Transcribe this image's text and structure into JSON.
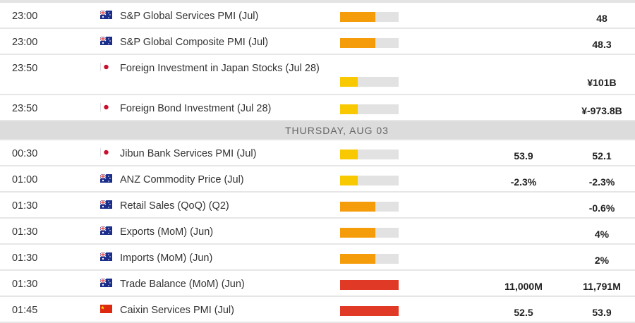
{
  "colors": {
    "high": "#e03a26",
    "medium": "#f59c0a",
    "low": "#f8c800",
    "empty": "#e2e2e2"
  },
  "groups": [
    {
      "rows": [
        {
          "time": "23:00",
          "flag": "australia-flag-icon",
          "event": "S&P Global Services PMI (Jul)",
          "impact": "medium",
          "impact_fraction": 0.6,
          "actual": "",
          "previous": "48"
        },
        {
          "time": "23:00",
          "flag": "australia-flag-icon",
          "event": "S&P Global Composite PMI (Jul)",
          "impact": "medium",
          "impact_fraction": 0.6,
          "actual": "",
          "previous": "48.3"
        },
        {
          "time": "23:50",
          "flag": "japan-flag-icon",
          "event": "Foreign Investment in Japan Stocks (Jul 28)",
          "impact": "low",
          "impact_fraction": 0.3,
          "actual": "",
          "previous": "¥101B",
          "tall": true
        },
        {
          "time": "23:50",
          "flag": "japan-flag-icon",
          "event": "Foreign Bond Investment (Jul 28)",
          "impact": "low",
          "impact_fraction": 0.3,
          "actual": "",
          "previous": "¥-973.8B"
        }
      ]
    },
    {
      "day": "THURSDAY, AUG 03",
      "rows": [
        {
          "time": "00:30",
          "flag": "japan-flag-icon",
          "event": "Jibun Bank Services PMI (Jul)",
          "impact": "low",
          "impact_fraction": 0.3,
          "actual": "53.9",
          "previous": "52.1"
        },
        {
          "time": "01:00",
          "flag": "australia-flag-icon",
          "event": "ANZ Commodity Price (Jul)",
          "impact": "low",
          "impact_fraction": 0.3,
          "actual": "-2.3%",
          "previous": "-2.3%"
        },
        {
          "time": "01:30",
          "flag": "australia-flag-icon",
          "event": "Retail Sales (QoQ) (Q2)",
          "impact": "medium",
          "impact_fraction": 0.6,
          "actual": "",
          "previous": "-0.6%"
        },
        {
          "time": "01:30",
          "flag": "australia-flag-icon",
          "event": "Exports (MoM) (Jun)",
          "impact": "medium",
          "impact_fraction": 0.6,
          "actual": "",
          "previous": "4%"
        },
        {
          "time": "01:30",
          "flag": "australia-flag-icon",
          "event": "Imports (MoM) (Jun)",
          "impact": "medium",
          "impact_fraction": 0.6,
          "actual": "",
          "previous": "2%"
        },
        {
          "time": "01:30",
          "flag": "australia-flag-icon",
          "event": "Trade Balance (MoM) (Jun)",
          "impact": "high",
          "impact_fraction": 1.0,
          "actual": "11,000M",
          "previous": "11,791M"
        },
        {
          "time": "01:45",
          "flag": "china-flag-icon",
          "event": "Caixin Services PMI (Jul)",
          "impact": "high",
          "impact_fraction": 1.0,
          "actual": "52.5",
          "previous": "53.9"
        }
      ]
    }
  ]
}
